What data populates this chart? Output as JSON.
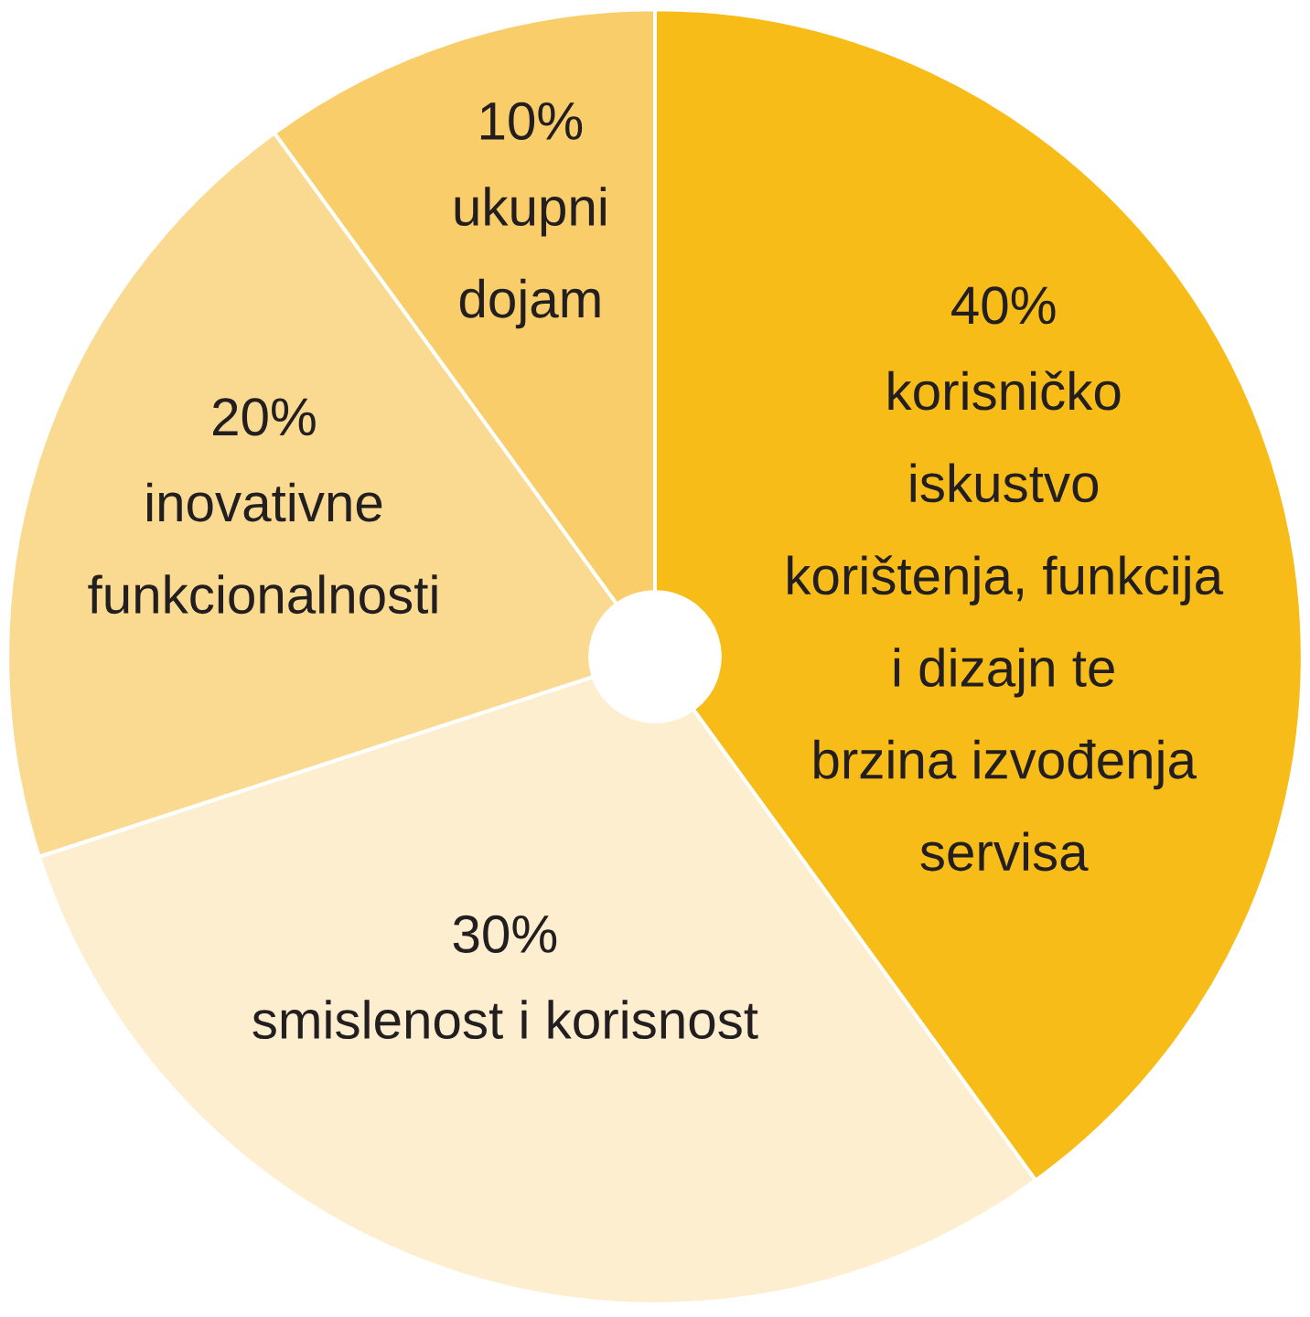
{
  "chart_data": {
    "type": "pie",
    "categories": [
      "korisničko\niskustvo\nkorištenja, funkcija\ni dizajn te\nbrzina izvođenja\nservisa",
      "smislenost i korisnost",
      "inovativne\nfunkcionalnosti",
      "ukupni\ndojam"
    ],
    "values": [
      40,
      30,
      20,
      10
    ],
    "colors": [
      "#f7bc17",
      "#fdeecf",
      "#fad991",
      "#f9cd6a"
    ],
    "value_labels": [
      "40%",
      "30%",
      "20%",
      "10%"
    ]
  }
}
